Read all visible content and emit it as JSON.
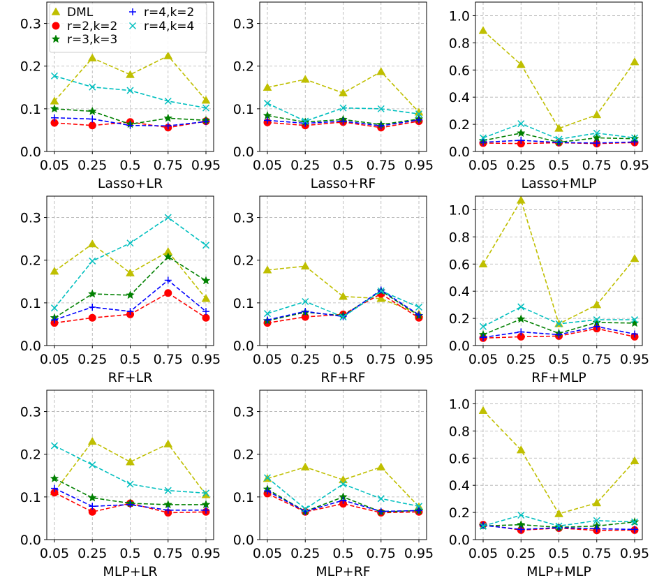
{
  "chart_data": [
    {
      "type": "line",
      "xlabel": "Lasso+LR",
      "x": [
        "0.05",
        "0.25",
        "0.5",
        "0.75",
        "0.95"
      ],
      "ylim": [
        0,
        0.35
      ],
      "yticks": [
        "0.0",
        "0.1",
        "0.2",
        "0.3"
      ],
      "yticks_values": [
        0,
        0.1,
        0.2,
        0.3
      ],
      "grid": true,
      "legend": "upper-left",
      "series": [
        {
          "name": "DML",
          "values": [
            0.118,
            0.219,
            0.18,
            0.224,
            0.12
          ]
        },
        {
          "name": "r=2,k=2",
          "values": [
            0.067,
            0.061,
            0.069,
            0.056,
            0.071
          ]
        },
        {
          "name": "r=3,k=3",
          "values": [
            0.1,
            0.094,
            0.064,
            0.078,
            0.073
          ]
        },
        {
          "name": "r=4,k=2",
          "values": [
            0.079,
            0.076,
            0.061,
            0.06,
            0.07
          ]
        },
        {
          "name": "r=4,k=4",
          "values": [
            0.177,
            0.151,
            0.143,
            0.118,
            0.102
          ]
        }
      ]
    },
    {
      "type": "line",
      "xlabel": "Lasso+RF",
      "x": [
        "0.05",
        "0.25",
        "0.5",
        "0.75",
        "0.95"
      ],
      "ylim": [
        0,
        0.35
      ],
      "yticks": [
        "0.0",
        "0.1",
        "0.2",
        "0.3"
      ],
      "yticks_values": [
        0,
        0.1,
        0.2,
        0.3
      ],
      "grid": true,
      "series": [
        {
          "name": "DML",
          "values": [
            0.15,
            0.169,
            0.137,
            0.187,
            0.092
          ]
        },
        {
          "name": "r=2,k=2",
          "values": [
            0.068,
            0.061,
            0.069,
            0.056,
            0.071
          ]
        },
        {
          "name": "r=3,k=3",
          "values": [
            0.084,
            0.069,
            0.075,
            0.063,
            0.076
          ]
        },
        {
          "name": "r=4,k=2",
          "values": [
            0.073,
            0.066,
            0.071,
            0.06,
            0.074
          ]
        },
        {
          "name": "r=4,k=4",
          "values": [
            0.113,
            0.071,
            0.102,
            0.1,
            0.088
          ]
        }
      ]
    },
    {
      "type": "line",
      "xlabel": "Lasso+MLP",
      "x": [
        "0.05",
        "0.25",
        "0.5",
        "0.75",
        "0.95"
      ],
      "ylim": [
        0,
        1.1
      ],
      "yticks": [
        "0.0",
        "0.2",
        "0.4",
        "0.6",
        "0.8",
        "1.0"
      ],
      "yticks_values": [
        0,
        0.2,
        0.4,
        0.6,
        0.8,
        1.0
      ],
      "grid": true,
      "series": [
        {
          "name": "DML",
          "values": [
            0.89,
            0.64,
            0.17,
            0.27,
            0.66
          ]
        },
        {
          "name": "r=2,k=2",
          "values": [
            0.062,
            0.058,
            0.065,
            0.058,
            0.066
          ]
        },
        {
          "name": "r=3,k=3",
          "values": [
            0.08,
            0.135,
            0.068,
            0.1,
            0.094
          ]
        },
        {
          "name": "r=4,k=2",
          "values": [
            0.068,
            0.082,
            0.066,
            0.062,
            0.07
          ]
        },
        {
          "name": "r=4,k=4",
          "values": [
            0.1,
            0.205,
            0.09,
            0.135,
            0.1
          ]
        }
      ]
    },
    {
      "type": "line",
      "xlabel": "RF+LR",
      "x": [
        "0.05",
        "0.25",
        "0.5",
        "0.75",
        "0.95"
      ],
      "ylim": [
        0,
        0.35
      ],
      "yticks": [
        "0.0",
        "0.1",
        "0.2",
        "0.3"
      ],
      "yticks_values": [
        0,
        0.1,
        0.2,
        0.3
      ],
      "grid": true,
      "series": [
        {
          "name": "DML",
          "values": [
            0.174,
            0.238,
            0.17,
            0.22,
            0.11
          ]
        },
        {
          "name": "r=2,k=2",
          "values": [
            0.053,
            0.065,
            0.073,
            0.123,
            0.065
          ]
        },
        {
          "name": "r=3,k=3",
          "values": [
            0.065,
            0.121,
            0.118,
            0.208,
            0.152
          ]
        },
        {
          "name": "r=4,k=2",
          "values": [
            0.06,
            0.09,
            0.08,
            0.153,
            0.08
          ]
        },
        {
          "name": "r=4,k=4",
          "values": [
            0.088,
            0.198,
            0.24,
            0.3,
            0.235
          ]
        }
      ]
    },
    {
      "type": "line",
      "xlabel": "RF+RF",
      "x": [
        "0.05",
        "0.25",
        "0.5",
        "0.75",
        "0.95"
      ],
      "ylim": [
        0,
        0.35
      ],
      "yticks": [
        "0.0",
        "0.1",
        "0.2",
        "0.3"
      ],
      "yticks_values": [
        0,
        0.1,
        0.2,
        0.3
      ],
      "grid": true,
      "series": [
        {
          "name": "DML",
          "values": [
            0.177,
            0.186,
            0.115,
            0.11,
            0.074
          ]
        },
        {
          "name": "r=2,k=2",
          "values": [
            0.053,
            0.067,
            0.073,
            0.121,
            0.065
          ]
        },
        {
          "name": "r=3,k=3",
          "values": [
            0.058,
            0.078,
            0.07,
            0.128,
            0.07
          ]
        },
        {
          "name": "r=4,k=2",
          "values": [
            0.06,
            0.08,
            0.068,
            0.13,
            0.072
          ]
        },
        {
          "name": "r=4,k=4",
          "values": [
            0.075,
            0.103,
            0.067,
            0.128,
            0.09
          ]
        }
      ]
    },
    {
      "type": "line",
      "xlabel": "RF+MLP",
      "x": [
        "0.05",
        "0.25",
        "0.5",
        "0.75",
        "0.95"
      ],
      "ylim": [
        0,
        1.1
      ],
      "yticks": [
        "0.0",
        "0.2",
        "0.4",
        "0.6",
        "0.8",
        "1.0"
      ],
      "yticks_values": [
        0,
        0.2,
        0.4,
        0.6,
        0.8,
        1.0
      ],
      "grid": true,
      "series": [
        {
          "name": "DML",
          "values": [
            0.6,
            1.07,
            0.16,
            0.3,
            0.64
          ]
        },
        {
          "name": "r=2,k=2",
          "values": [
            0.055,
            0.065,
            0.07,
            0.125,
            0.065
          ]
        },
        {
          "name": "r=3,k=3",
          "values": [
            0.08,
            0.195,
            0.09,
            0.17,
            0.165
          ]
        },
        {
          "name": "r=4,k=2",
          "values": [
            0.06,
            0.1,
            0.08,
            0.14,
            0.085
          ]
        },
        {
          "name": "r=4,k=4",
          "values": [
            0.14,
            0.285,
            0.16,
            0.19,
            0.19
          ]
        }
      ]
    },
    {
      "type": "line",
      "xlabel": "MLP+LR",
      "x": [
        "0.05",
        "0.25",
        "0.5",
        "0.75",
        "0.95"
      ],
      "ylim": [
        0,
        0.35
      ],
      "yticks": [
        "0.0",
        "0.1",
        "0.2",
        "0.3"
      ],
      "yticks_values": [
        0,
        0.1,
        0.2,
        0.3
      ],
      "grid": true,
      "series": [
        {
          "name": "DML",
          "values": [
            0.112,
            0.23,
            0.182,
            0.224,
            0.105
          ]
        },
        {
          "name": "r=2,k=2",
          "values": [
            0.11,
            0.065,
            0.085,
            0.063,
            0.065
          ]
        },
        {
          "name": "r=3,k=3",
          "values": [
            0.143,
            0.098,
            0.085,
            0.082,
            0.082
          ]
        },
        {
          "name": "r=4,k=2",
          "values": [
            0.12,
            0.078,
            0.082,
            0.069,
            0.069
          ]
        },
        {
          "name": "r=4,k=4",
          "values": [
            0.22,
            0.175,
            0.13,
            0.115,
            0.109
          ]
        }
      ]
    },
    {
      "type": "line",
      "xlabel": "MLP+RF",
      "x": [
        "0.05",
        "0.25",
        "0.5",
        "0.75",
        "0.95"
      ],
      "ylim": [
        0,
        0.35
      ],
      "yticks": [
        "0.0",
        "0.1",
        "0.2",
        "0.3"
      ],
      "yticks_values": [
        0,
        0.1,
        0.2,
        0.3
      ],
      "grid": true,
      "series": [
        {
          "name": "DML",
          "values": [
            0.143,
            0.17,
            0.14,
            0.17,
            0.077
          ]
        },
        {
          "name": "r=2,k=2",
          "values": [
            0.108,
            0.065,
            0.084,
            0.063,
            0.065
          ]
        },
        {
          "name": "r=3,k=3",
          "values": [
            0.118,
            0.066,
            0.1,
            0.065,
            0.068
          ]
        },
        {
          "name": "r=4,k=2",
          "values": [
            0.114,
            0.066,
            0.092,
            0.066,
            0.068
          ]
        },
        {
          "name": "r=4,k=4",
          "values": [
            0.145,
            0.072,
            0.13,
            0.096,
            0.078
          ]
        }
      ]
    },
    {
      "type": "line",
      "xlabel": "MLP+MLP",
      "x": [
        "0.05",
        "0.25",
        "0.5",
        "0.75",
        "0.95"
      ],
      "ylim": [
        0,
        1.1
      ],
      "yticks": [
        "0.0",
        "0.2",
        "0.4",
        "0.6",
        "0.8",
        "1.0"
      ],
      "yticks_values": [
        0,
        0.2,
        0.4,
        0.6,
        0.8,
        1.0
      ],
      "grid": true,
      "series": [
        {
          "name": "DML",
          "values": [
            0.95,
            0.66,
            0.19,
            0.27,
            0.58
          ]
        },
        {
          "name": "r=2,k=2",
          "values": [
            0.11,
            0.07,
            0.085,
            0.068,
            0.07
          ]
        },
        {
          "name": "r=3,k=3",
          "values": [
            0.1,
            0.11,
            0.09,
            0.1,
            0.13
          ]
        },
        {
          "name": "r=4,k=2",
          "values": [
            0.105,
            0.075,
            0.088,
            0.08,
            0.075
          ]
        },
        {
          "name": "r=4,k=4",
          "values": [
            0.1,
            0.18,
            0.1,
            0.14,
            0.13
          ]
        }
      ]
    }
  ],
  "legend": [
    {
      "label": "DML",
      "color": "#bfbf00",
      "marker": "triangle"
    },
    {
      "label": "r=2,k=2",
      "color": "#ff0000",
      "marker": "circle"
    },
    {
      "label": "r=3,k=3",
      "color": "#008000",
      "marker": "star"
    },
    {
      "label": "r=4,k=2",
      "color": "#0000ff",
      "marker": "plus"
    },
    {
      "label": "r=4,k=4",
      "color": "#00bfbf",
      "marker": "x"
    }
  ]
}
